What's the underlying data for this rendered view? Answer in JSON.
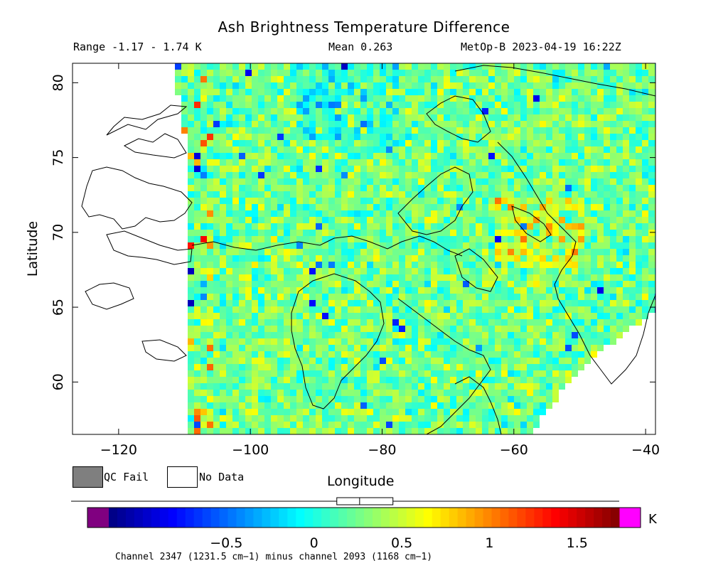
{
  "title": "Ash Brightness Temperature Difference",
  "header": {
    "range": "Range -1.17 - 1.74 K",
    "mean": "Mean 0.263",
    "satellite_time": "MetOp-B 2023-04-19 16:22Z"
  },
  "axes": {
    "xlabel": "Longitude",
    "ylabel": "Latitude",
    "x_ticks": [
      "−120",
      "−100",
      "−80",
      "−60",
      "−40"
    ],
    "y_ticks": [
      "60",
      "65",
      "70",
      "75",
      "80"
    ]
  },
  "legend": {
    "qc_fail": "QC Fail",
    "no_data": "No Data"
  },
  "colorbar": {
    "unit": "K",
    "ticks": [
      "−0.5",
      "0",
      "0.5",
      "1",
      "1.5"
    ],
    "range": [
      -1.17,
      1.74
    ],
    "under_color": "#800080",
    "over_color": "#ff00ff",
    "qc_color": "#7f7f7f"
  },
  "footnote": "Channel 2347 (1231.5 cm−1) minus channel 2093 (1168 cm−1)",
  "chart_data": {
    "type": "heatmap",
    "title": "Ash Brightness Temperature Difference",
    "xlabel": "Longitude",
    "ylabel": "Latitude",
    "xlim": [
      -127,
      -38.5
    ],
    "ylim": [
      56.5,
      81.3
    ],
    "x_ticks": [
      -120,
      -100,
      -80,
      -60,
      -40
    ],
    "y_ticks": [
      60,
      65,
      70,
      75,
      80
    ],
    "value_range": [
      -1.17,
      1.74
    ],
    "mean": 0.263,
    "units": "K",
    "colormap": "jet",
    "colorbar_ticks": [
      -0.5,
      0,
      0.5,
      1,
      1.5
    ],
    "box_plot": {
      "whisker_low": -1.17,
      "q1": 0.13,
      "median": 0.26,
      "q3": 0.45,
      "whisker_high": 1.74
    }
  }
}
